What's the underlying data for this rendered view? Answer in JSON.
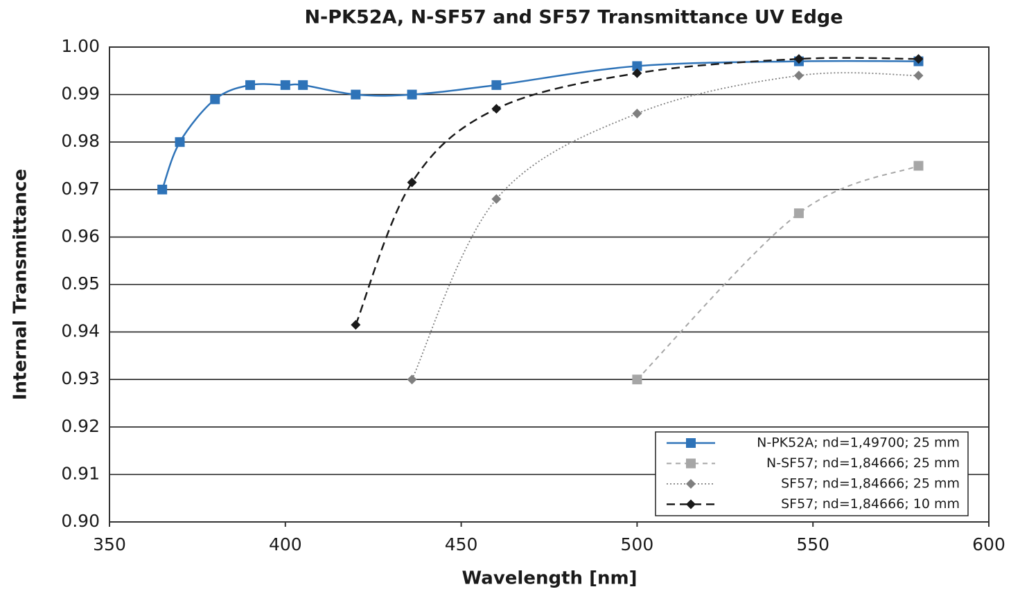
{
  "chart_data": {
    "type": "line",
    "title": "N-PK52A, N-SF57 and SF57 Transmittance UV Edge",
    "x_label": "Wavelength [nm]",
    "y_label": "Internal Transmittance",
    "xlim": [
      350,
      600
    ],
    "xticks": [
      350,
      400,
      450,
      500,
      550,
      600
    ],
    "ylim": [
      0.9,
      1.0
    ],
    "yticks": [
      {
        "value": 0.9,
        "label": "0.90"
      },
      0.91,
      0.92,
      0.93,
      0.94,
      0.95,
      0.96,
      0.97,
      0.98,
      0.99,
      {
        "value": 1.0,
        "label": "1.00"
      }
    ],
    "grid": true,
    "legend": "lower right",
    "series": [
      {
        "name": "N-PK52A; nd=1,49700; 25 mm",
        "color": "#2e73b8",
        "marker": "square",
        "dash": "solid",
        "x": [
          365,
          370,
          380,
          390,
          400,
          405,
          420,
          436,
          460,
          500,
          546,
          580
        ],
        "values": [
          0.97,
          0.98,
          0.989,
          0.992,
          0.992,
          0.992,
          0.99,
          0.99,
          0.992,
          0.996,
          0.997,
          0.997
        ]
      },
      {
        "name": "N-SF57; nd=1,84666; 25 mm",
        "color": "#a6a6a6",
        "marker": "square",
        "dash": "dashed",
        "x": [
          500,
          546,
          580
        ],
        "values": [
          0.93,
          0.965,
          0.975
        ]
      },
      {
        "name": "SF57; nd=1,84666; 25 mm",
        "color": "#7f7f7f",
        "marker": "diamond",
        "dash": "dotted",
        "x": [
          436,
          460,
          500,
          546,
          580
        ],
        "values": [
          0.93,
          0.968,
          0.986,
          0.994,
          0.994
        ]
      },
      {
        "name": "SF57; nd=1,84666; 10 mm",
        "color": "#1a1a1a",
        "marker": "diamond",
        "dash": "longdash",
        "x": [
          420,
          436,
          460,
          500,
          546,
          580
        ],
        "values": [
          0.9415,
          0.9715,
          0.987,
          0.9945,
          0.9975,
          0.9975
        ]
      }
    ]
  }
}
